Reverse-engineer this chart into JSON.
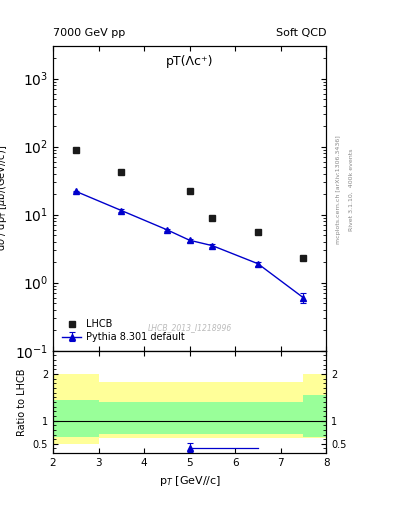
{
  "title_left": "7000 GeV pp",
  "title_right": "Soft QCD",
  "plot_title": "pT(Λc⁺)",
  "right_label1": "Rivet 3.1.10,  400k events",
  "right_label2": "mcplots.cern.ch [arXiv:1306.3436]",
  "ref_label": "LHCB_2013_I1218996",
  "xlabel": "p$_T$ [GeV//c]",
  "ylabel_main": "dσ / dp$_T$ [μb/(GeV//c)]",
  "ylabel_ratio": "Ratio to LHCB",
  "xlim": [
    2,
    8
  ],
  "ylim_main": [
    0.1,
    3000
  ],
  "ylim_ratio": [
    0.3,
    2.5
  ],
  "lhcb_x": [
    2.5,
    3.5,
    5.0,
    5.5,
    6.5,
    7.5
  ],
  "lhcb_y": [
    90,
    43,
    22,
    9.0,
    5.5,
    2.3
  ],
  "pythia_x": [
    2.5,
    3.5,
    4.5,
    5.0,
    5.5,
    6.5,
    7.5
  ],
  "pythia_y": [
    22,
    11.5,
    6.0,
    4.2,
    3.5,
    1.9,
    0.6
  ],
  "pythia_yerr_lo": [
    0.6,
    0.4,
    0.25,
    0.2,
    0.18,
    0.12,
    0.1
  ],
  "pythia_yerr_hi": [
    0.6,
    0.4,
    0.25,
    0.2,
    0.18,
    0.12,
    0.1
  ],
  "yellow_band_edges": [
    2.0,
    3.0,
    5.0,
    7.5,
    8.0
  ],
  "yellow_band_ylo": [
    0.5,
    0.62,
    0.62,
    0.62,
    0.5
  ],
  "yellow_band_yhi": [
    2.0,
    1.82,
    1.82,
    2.0,
    2.0
  ],
  "green_band_edges": [
    2.0,
    3.0,
    5.0,
    7.5,
    8.0
  ],
  "green_band_ylo": [
    0.65,
    0.72,
    0.72,
    0.65,
    0.65
  ],
  "green_band_yhi": [
    1.45,
    1.4,
    1.4,
    1.55,
    1.55
  ],
  "ratio_line_x": [
    5.0,
    6.5
  ],
  "ratio_line_y": [
    0.42,
    0.42
  ],
  "ratio_point_x": 5.0,
  "ratio_point_y": 0.42,
  "ratio_point_yerr": 0.09,
  "lhcb_color": "#1a1a1a",
  "pythia_color": "#0000cc",
  "yellow_color": "#ffff99",
  "green_color": "#99ff99",
  "lhcb_marker": "s",
  "pythia_marker": "^",
  "lhcb_markersize": 5,
  "pythia_markersize": 5
}
